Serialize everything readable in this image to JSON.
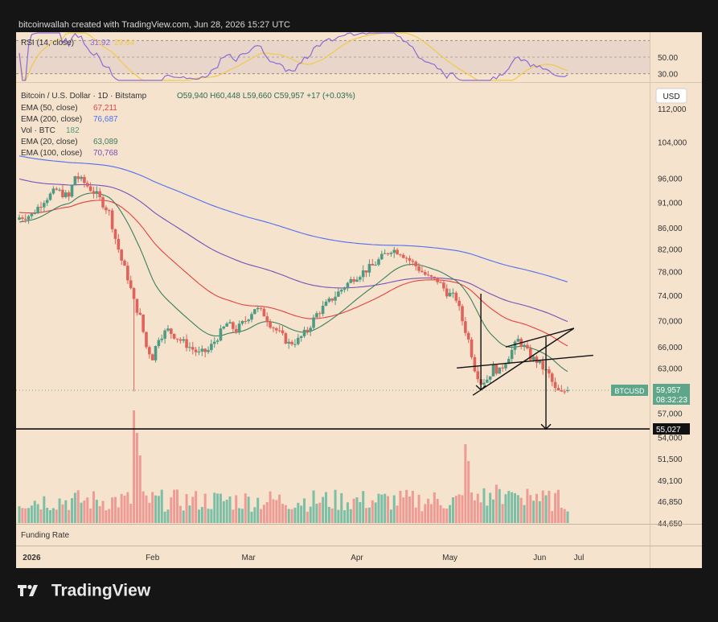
{
  "header": {
    "attribution": "bitcoinwallah created with TradingView.com, Jun 28, 2026 15:27 UTC"
  },
  "footer": {
    "brand": "TradingView"
  },
  "colors": {
    "up": "#4f9a82",
    "down": "#e0625a",
    "ema50": "#e84040",
    "ema200": "#4f6ff0",
    "ema20": "#3a7f5e",
    "ema100": "#7a4fb8",
    "vol_up": "#7dbfa6",
    "vol_down": "#ee9b95",
    "rsi": "#8d6bd6",
    "rsi_ma": "#f2c94c",
    "price_tag": "#5ea58a"
  },
  "chart_data": {
    "type": "candlestick",
    "symbol_line": "Bitcoin / U.S. Dollar · 1D · Bitstamp",
    "ohlc_line": "O59,940 H60,448 L59,660 C59,957 +17 (+0.03%)",
    "legend": [
      {
        "label": "EMA (50, close)",
        "value": "67,211",
        "color": "ema50"
      },
      {
        "label": "EMA (200, close)",
        "value": "76,687",
        "color": "ema200"
      },
      {
        "label": "Vol · BTC",
        "value": "182",
        "color": "up"
      },
      {
        "label": "EMA (20, close)",
        "value": "63,089",
        "color": "ema20"
      },
      {
        "label": "EMA (100, close)",
        "value": "70,768",
        "color": "ema100"
      }
    ],
    "rsi_legend": {
      "label": "RSI (14, close)",
      "value": "31.92",
      "ma": "29.64"
    },
    "rsi_ticks": [
      "50.00",
      "30.00"
    ],
    "currency": "USD",
    "y_scale": "log",
    "ylim": [
      44650,
      118000
    ],
    "y_ticks": [
      "112,000",
      "104,000",
      "96,000",
      "91,000",
      "86,000",
      "82,000",
      "78,000",
      "74,000",
      "70,000",
      "66,000",
      "63,000",
      "57,000",
      "54,000",
      "51,500",
      "49,100",
      "46,850",
      "44,650"
    ],
    "last_price": {
      "symbol": "BTCUSD",
      "price": "59,957",
      "countdown": "08:32:23"
    },
    "support_level": "55,027",
    "x_ticks": [
      "2026",
      "Feb",
      "Mar",
      "Apr",
      "May",
      "Jun",
      "Jul"
    ],
    "funding_label": "Funding Rate",
    "anchors": [
      [
        0,
        88000
      ],
      [
        4,
        88500
      ],
      [
        8,
        91500
      ],
      [
        12,
        93500
      ],
      [
        16,
        92000
      ],
      [
        18,
        96500
      ],
      [
        21,
        95000
      ],
      [
        25,
        92500
      ],
      [
        29,
        89000
      ],
      [
        31,
        84000
      ],
      [
        33,
        80000
      ],
      [
        35,
        77000
      ],
      [
        37,
        73000
      ],
      [
        39,
        70500
      ],
      [
        41,
        66000
      ],
      [
        43,
        64500
      ],
      [
        45,
        67500
      ],
      [
        48,
        68500
      ],
      [
        52,
        67000
      ],
      [
        55,
        66000
      ],
      [
        58,
        65000
      ],
      [
        61,
        65500
      ],
      [
        64,
        67500
      ],
      [
        67,
        69500
      ],
      [
        70,
        68500
      ],
      [
        73,
        70000
      ],
      [
        76,
        72000
      ],
      [
        79,
        71000
      ],
      [
        81,
        69500
      ],
      [
        84,
        68000
      ],
      [
        87,
        66500
      ],
      [
        90,
        67000
      ],
      [
        93,
        68500
      ],
      [
        96,
        71000
      ],
      [
        99,
        72500
      ],
      [
        102,
        74000
      ],
      [
        105,
        75500
      ],
      [
        108,
        77000
      ],
      [
        111,
        78000
      ],
      [
        114,
        79000
      ],
      [
        117,
        80500
      ],
      [
        120,
        82000
      ],
      [
        123,
        81500
      ],
      [
        126,
        80000
      ],
      [
        129,
        78500
      ],
      [
        132,
        77000
      ],
      [
        135,
        76500
      ],
      [
        138,
        74500
      ],
      [
        141,
        73500
      ],
      [
        143,
        70000
      ],
      [
        145,
        67000
      ],
      [
        147,
        63000
      ],
      [
        149,
        61000
      ],
      [
        151,
        61500
      ],
      [
        153,
        63000
      ],
      [
        155,
        62500
      ],
      [
        157,
        64000
      ],
      [
        159,
        65500
      ],
      [
        161,
        67000
      ],
      [
        163,
        66000
      ],
      [
        165,
        64500
      ],
      [
        167,
        64000
      ],
      [
        169,
        63000
      ],
      [
        171,
        62000
      ],
      [
        173,
        60000
      ],
      [
        175,
        59500
      ],
      [
        177,
        59957
      ]
    ],
    "volume_spikes": [
      [
        37,
        1.0
      ],
      [
        38,
        0.8
      ],
      [
        39,
        0.6
      ],
      [
        144,
        0.7
      ],
      [
        145,
        0.55
      ]
    ]
  }
}
